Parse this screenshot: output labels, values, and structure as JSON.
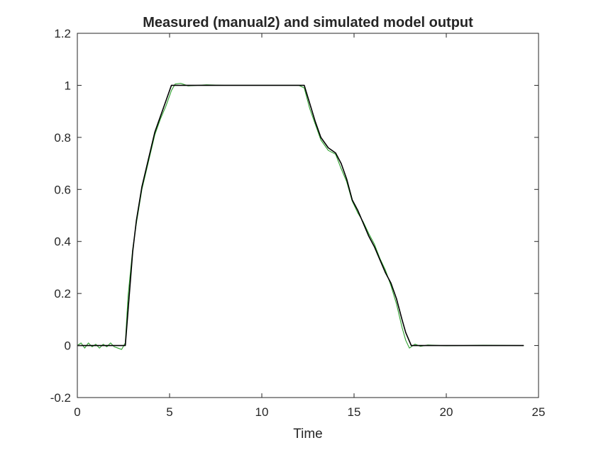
{
  "chart_data": {
    "type": "line",
    "title": "Measured (manual2) and simulated model output",
    "xlabel": "Time",
    "ylabel": "",
    "xlim": [
      0,
      25
    ],
    "ylim": [
      -0.2,
      1.2
    ],
    "xticks": [
      "0",
      "5",
      "10",
      "15",
      "20",
      "25"
    ],
    "yticks": [
      "-0.2",
      "0",
      "0.2",
      "0.4",
      "0.6",
      "0.8",
      "1",
      "1.2"
    ],
    "grid": false,
    "legend": "none",
    "series": [
      {
        "color": "#000000",
        "x": [
          0,
          2.6,
          2.8,
          3.0,
          3.2,
          3.5,
          3.8,
          4.2,
          4.5,
          4.8,
          5.1,
          5.5,
          6.0,
          8.0,
          10.0,
          12.0,
          12.3,
          12.6,
          12.9,
          13.2,
          13.6,
          14.0,
          14.3,
          14.6,
          14.9,
          15.2,
          15.5,
          15.8,
          16.1,
          16.4,
          16.7,
          17.0,
          17.3,
          17.6,
          17.8,
          18.1,
          19.0,
          20.0,
          22.0,
          24.2
        ],
        "y": [
          0,
          0,
          0.18,
          0.36,
          0.48,
          0.61,
          0.7,
          0.82,
          0.88,
          0.94,
          1.0,
          1.0,
          1.0,
          1.0,
          1.0,
          1.0,
          1.0,
          0.93,
          0.86,
          0.8,
          0.76,
          0.74,
          0.7,
          0.64,
          0.56,
          0.52,
          0.47,
          0.42,
          0.38,
          0.33,
          0.28,
          0.24,
          0.18,
          0.1,
          0.05,
          0.0,
          0.0,
          0.0,
          0.0,
          0.0
        ]
      },
      {
        "color": "#2ca02c",
        "x": [
          0,
          0.2,
          0.4,
          0.6,
          0.8,
          1.0,
          1.2,
          1.4,
          1.6,
          1.8,
          2.0,
          2.2,
          2.4,
          2.6,
          2.75,
          3.0,
          3.2,
          3.5,
          3.8,
          4.2,
          4.5,
          4.8,
          5.1,
          5.3,
          5.6,
          6.0,
          7.0,
          8.0,
          10.0,
          12.0,
          12.3,
          12.6,
          12.9,
          13.2,
          13.6,
          14.0,
          14.3,
          14.6,
          14.9,
          15.2,
          15.5,
          15.8,
          16.1,
          16.4,
          16.7,
          17.0,
          17.3,
          17.6,
          17.8,
          18.0,
          18.3,
          18.6,
          19.0,
          20.0,
          22.0,
          24.2
        ],
        "y": [
          0.0,
          0.01,
          -0.01,
          0.01,
          -0.005,
          0.005,
          -0.01,
          0.005,
          -0.005,
          0.01,
          -0.005,
          -0.01,
          -0.015,
          0.01,
          0.19,
          0.37,
          0.47,
          0.6,
          0.69,
          0.81,
          0.87,
          0.92,
          0.98,
          1.005,
          1.008,
          0.998,
          1.002,
          1.0,
          1.0,
          1.0,
          0.99,
          0.91,
          0.85,
          0.79,
          0.75,
          0.735,
          0.68,
          0.63,
          0.555,
          0.51,
          0.475,
          0.43,
          0.39,
          0.335,
          0.29,
          0.23,
          0.16,
          0.07,
          0.02,
          -0.01,
          0.005,
          -0.003,
          0.002,
          -0.001,
          0.001,
          0.0
        ]
      }
    ]
  }
}
